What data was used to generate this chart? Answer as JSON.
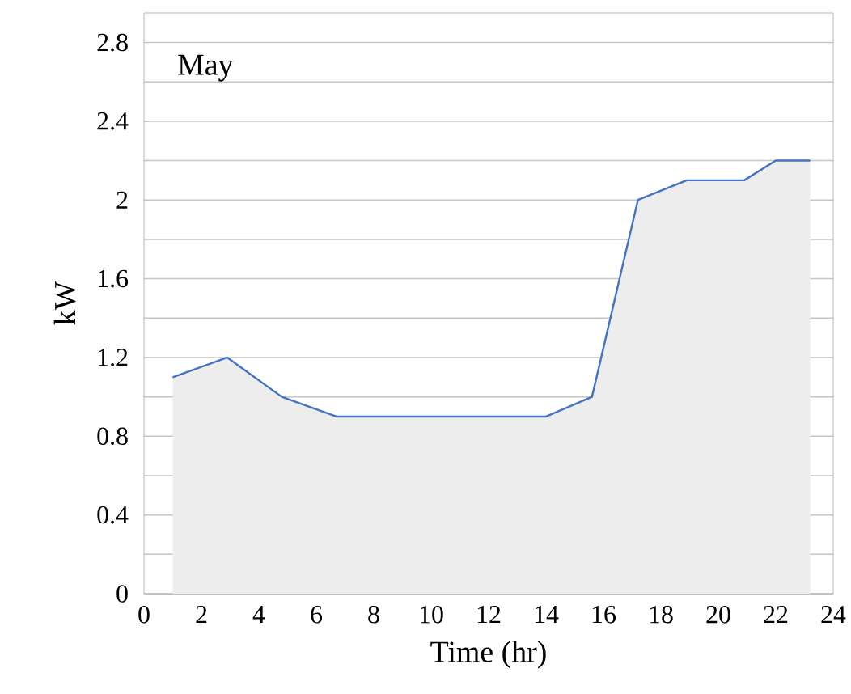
{
  "chart_data": {
    "type": "area",
    "xlabel": "Time (hr)",
    "ylabel": "kW",
    "annotations": [
      "May"
    ],
    "x": [
      1,
      2.9,
      4.8,
      6.7,
      14,
      15.6,
      17.2,
      18.9,
      20.9,
      22,
      23.2
    ],
    "series": [
      {
        "color": "#4472c4",
        "values": [
          1.1,
          1.2,
          1.0,
          0.9,
          0.9,
          1.0,
          2.0,
          2.1,
          2.1,
          2.2,
          2.2
        ]
      }
    ],
    "xlim": [
      0,
      24
    ],
    "xticks": [
      0,
      2,
      4,
      6,
      8,
      10,
      12,
      14,
      16,
      18,
      20,
      22,
      24
    ],
    "ylim": [
      0,
      2.95
    ],
    "yticks": [
      0,
      {
        "value": 0.2,
        "label": null
      },
      0.4,
      {
        "value": 0.6,
        "label": null
      },
      0.8,
      {
        "value": 1.0,
        "label": null
      },
      1.2,
      {
        "value": 1.4,
        "label": null
      },
      1.6,
      {
        "value": 1.8,
        "label": null
      },
      2,
      {
        "value": 2.2,
        "label": null
      },
      2.4,
      {
        "value": 2.6,
        "label": null
      },
      2.8
    ],
    "grid": "y"
  }
}
